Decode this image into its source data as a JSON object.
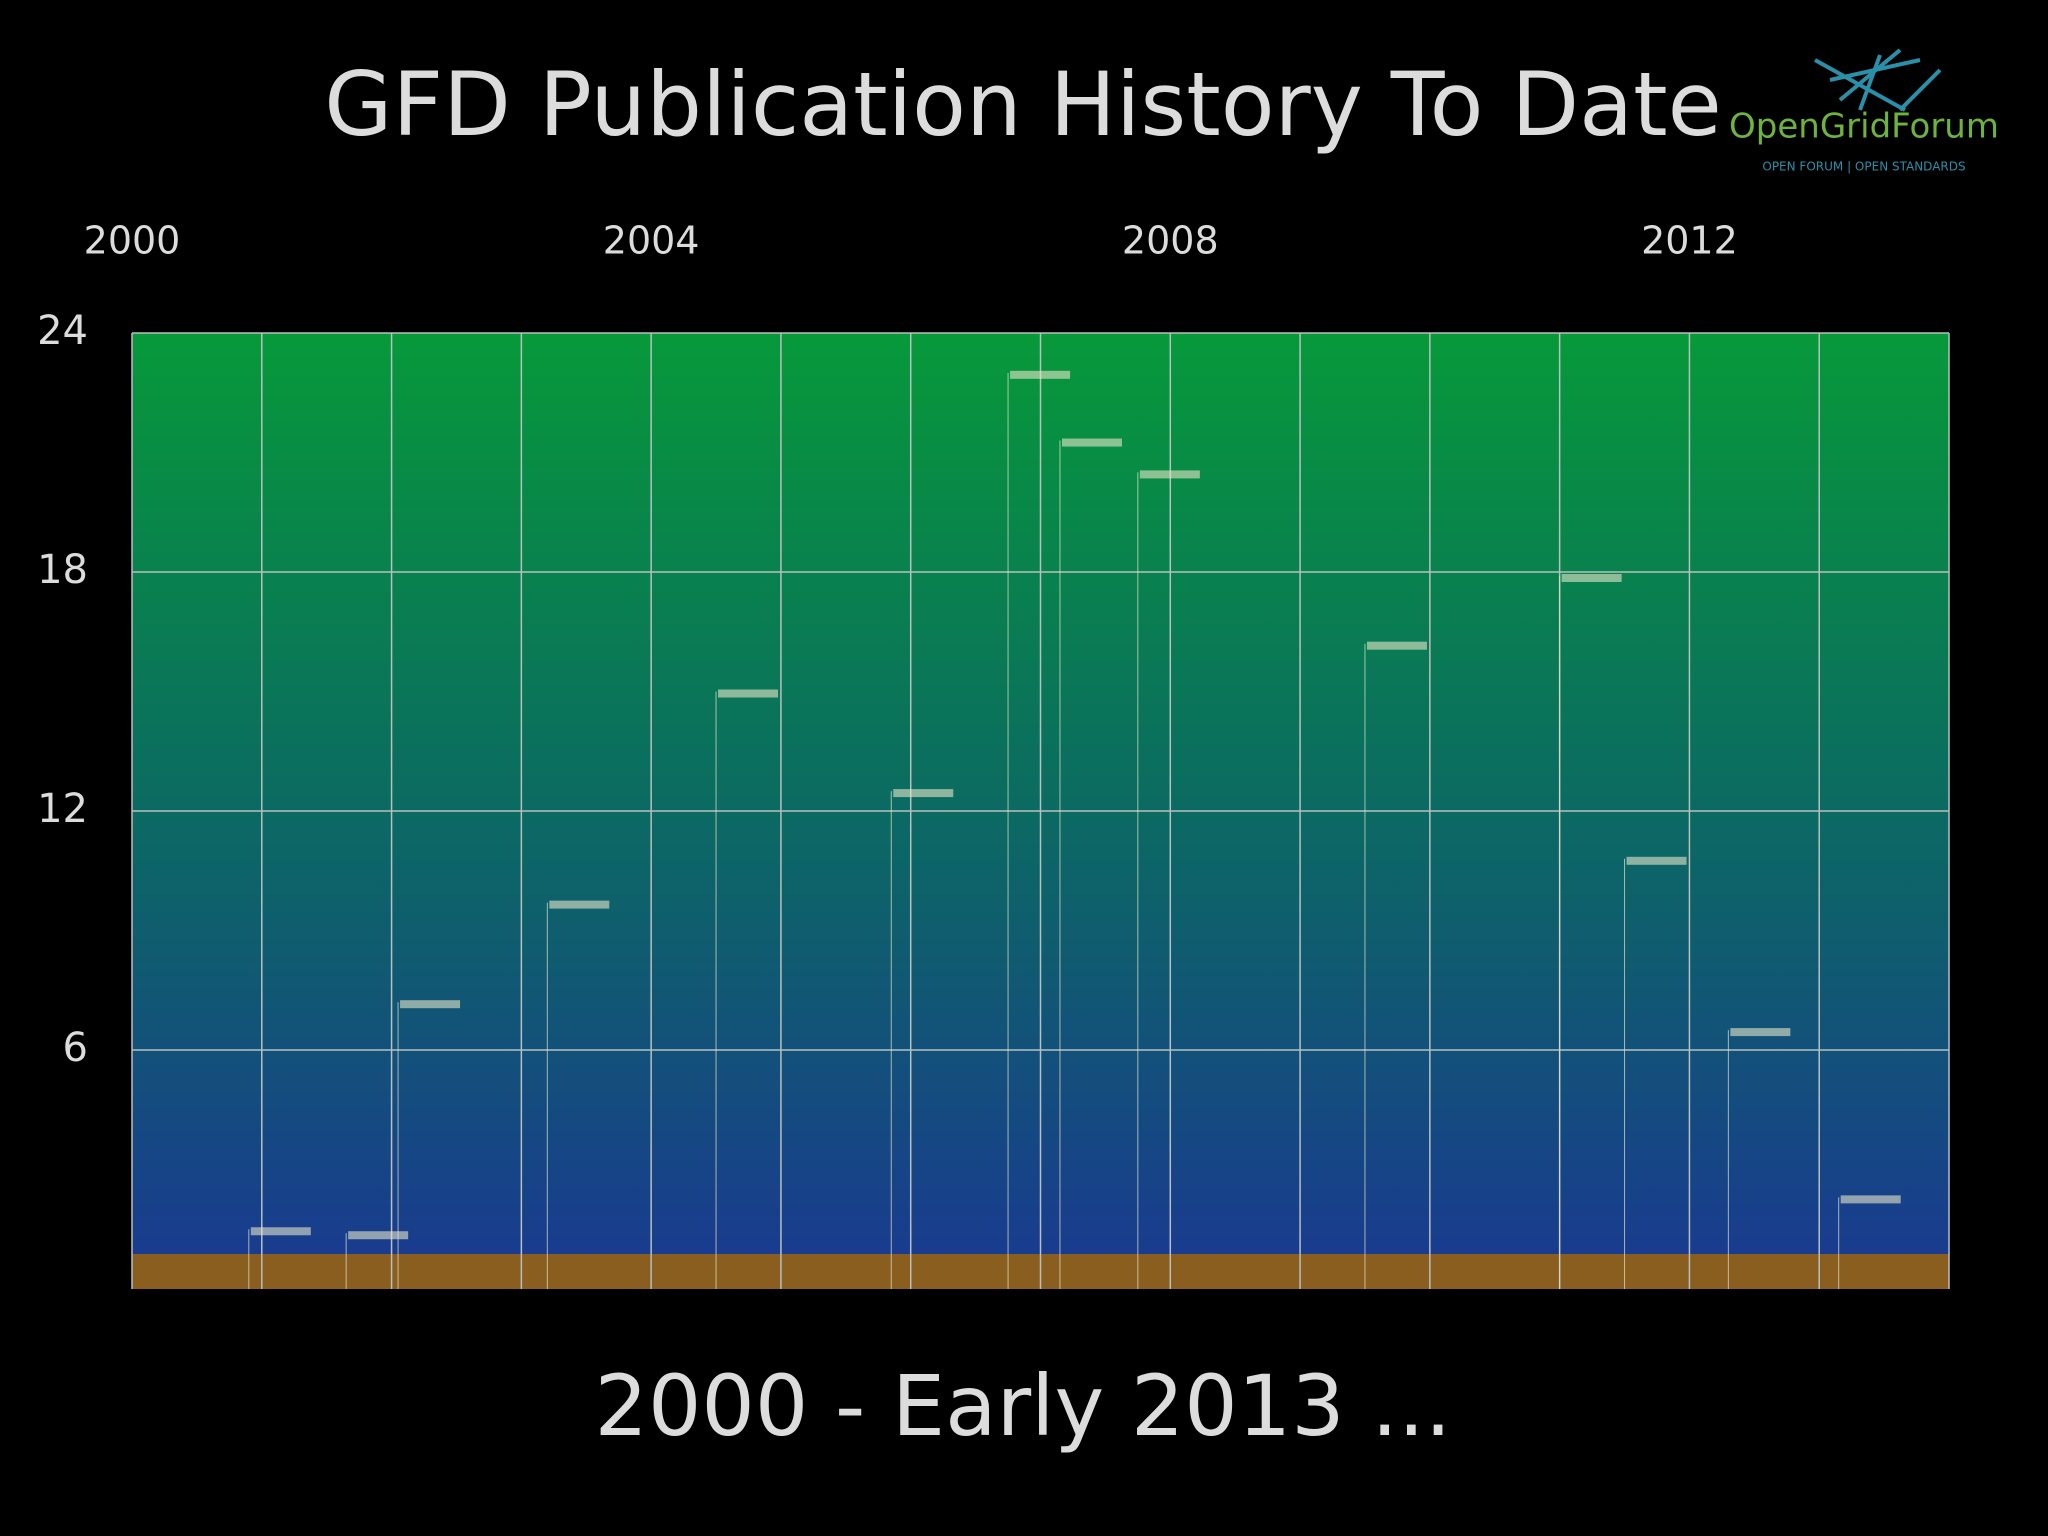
{
  "chart_data": {
    "type": "timeline",
    "title": "GFD Publication History To Date",
    "subtitle": "2000 - Early 2013 ...",
    "logo": {
      "name": "OpenGridForum",
      "tagline": "OPEN FORUM | OPEN STANDARDS"
    },
    "x": [
      2000.9,
      2001.65,
      2002.05,
      2003.2,
      2004.5,
      2005.85,
      2006.75,
      2007.15,
      2007.75,
      2009.5,
      2011.0,
      2011.5,
      2012.3,
      2013.15
    ],
    "values": [
      1.5,
      1.4,
      7.2,
      9.7,
      15,
      12.5,
      23,
      21.3,
      20.5,
      16.2,
      17.9,
      10.8,
      6.5,
      2.3
    ],
    "color": "#e6e6c8",
    "xlim": [
      2000,
      2014
    ],
    "xticks": [
      2000,
      2004,
      2008,
      2012
    ],
    "xminorticks": [
      2001,
      2002,
      2003,
      2005,
      2006,
      2007,
      2009,
      2010,
      2011,
      2013,
      2014
    ],
    "ylim": [
      0,
      24
    ],
    "yticks": [
      6,
      12,
      18,
      24
    ],
    "grid": true
  }
}
